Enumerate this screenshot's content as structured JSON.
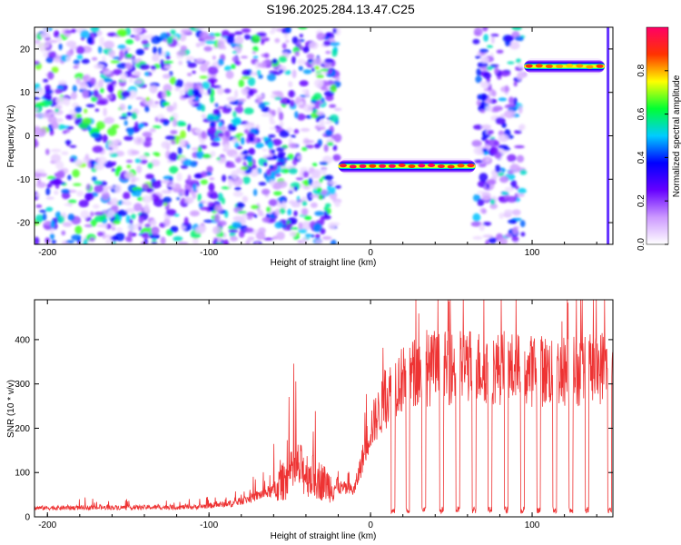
{
  "title": "S196.2025.284.13.47.C25",
  "chart_data": [
    {
      "type": "heatmap",
      "name": "spectrogram",
      "xlabel": "Height of straight line (km)",
      "ylabel": "Frequency (Hz)",
      "xlim": [
        -208,
        150
      ],
      "ylim": [
        -25,
        25
      ],
      "xticks": [
        -200,
        -100,
        0,
        100
      ],
      "xtick_labels": [
        "-200",
        "-100",
        "0",
        "100"
      ],
      "yticks": [
        20,
        10,
        0,
        -10,
        -20
      ],
      "ytick_labels": [
        "20",
        "10",
        "0",
        "-10",
        "-20"
      ],
      "colorbar": {
        "label": "Normalized spectral amplitude",
        "range": [
          0,
          1
        ],
        "ticks": [
          0.0,
          0.2,
          0.4,
          0.6,
          0.8
        ],
        "tick_labels": [
          "0.0",
          "0.2",
          "0.4",
          "0.6",
          "0.8"
        ],
        "stops": [
          "#ffffff",
          "#cc99ff",
          "#6600ff",
          "#0000ff",
          "#00ccff",
          "#00ff33",
          "#ffff00",
          "#ff3300",
          "#ff0066"
        ]
      },
      "lines": [
        {
          "x_start": -20,
          "x_end": 65,
          "freq_hz": -7,
          "peak_amplitude": 1.0
        },
        {
          "x_start": 95,
          "x_end": 145,
          "freq_hz": 16,
          "peak_amplitude": 0.9
        }
      ],
      "noise_regions": [
        {
          "x_start": -208,
          "x_end": -20,
          "mean_amplitude": 0.25
        },
        {
          "x_start": 65,
          "x_end": 95,
          "mean_amplitude": 0.2
        }
      ]
    },
    {
      "type": "line",
      "name": "snr",
      "xlabel": "Height of straight line (km)",
      "ylabel": "SNR (10 * v/v)",
      "xlim": [
        -208,
        150
      ],
      "ylim": [
        0,
        490
      ],
      "xticks": [
        -200,
        -100,
        0,
        100
      ],
      "xtick_labels": [
        "-200",
        "-100",
        "0",
        "100"
      ],
      "yticks": [
        0,
        100,
        200,
        300,
        400
      ],
      "ytick_labels": [
        "0",
        "100",
        "200",
        "300",
        "400"
      ],
      "color": "#ee3333",
      "trend": [
        {
          "x": -208,
          "y": 20
        },
        {
          "x": -110,
          "y": 22
        },
        {
          "x": -85,
          "y": 30
        },
        {
          "x": -60,
          "y": 60
        },
        {
          "x": -45,
          "y": 110
        },
        {
          "x": -25,
          "y": 70
        },
        {
          "x": -10,
          "y": 60
        },
        {
          "x": 0,
          "y": 200
        },
        {
          "x": 15,
          "y": 300
        },
        {
          "x": 30,
          "y": 330
        },
        {
          "x": 60,
          "y": 340
        },
        {
          "x": 100,
          "y": 330
        },
        {
          "x": 140,
          "y": 330
        },
        {
          "x": 150,
          "y": 360
        }
      ],
      "dropouts_x": [
        14,
        23,
        33,
        44,
        54,
        64,
        74,
        84,
        94,
        104,
        114,
        124,
        134,
        148
      ]
    }
  ]
}
